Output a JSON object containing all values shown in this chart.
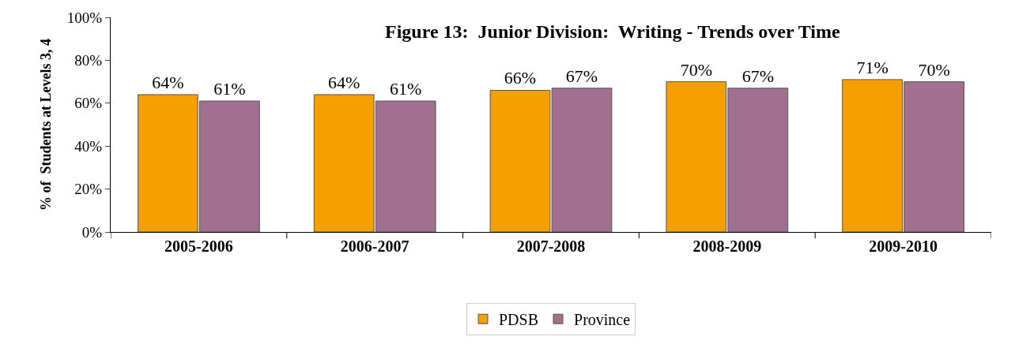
{
  "chart_data": {
    "type": "bar",
    "title": "Figure 13:  Junior Division:  Writing - Trends over Time",
    "ylabel": "% of  Students at Levels 3, 4",
    "categories": [
      "2005-2006",
      "2006-2007",
      "2007-2008",
      "2008-2009",
      "2009-2010"
    ],
    "series": [
      {
        "name": "PDSB",
        "color": "#f5a000",
        "values": [
          64,
          64,
          66,
          70,
          71
        ],
        "value_labels": [
          "64%",
          "64%",
          "66%",
          "70%",
          "71%"
        ]
      },
      {
        "name": "Province",
        "color": "#a2708f",
        "values": [
          61,
          61,
          67,
          67,
          70
        ],
        "value_labels": [
          "61%",
          "61%",
          "67%",
          "67%",
          "70%"
        ]
      }
    ],
    "ylim": [
      0,
      100
    ],
    "yticks": [
      {
        "value": 0,
        "label": "0%"
      },
      {
        "value": 20,
        "label": "20%"
      },
      {
        "value": 40,
        "label": "40%"
      },
      {
        "value": 60,
        "label": "60%"
      },
      {
        "value": 80,
        "label": "80%"
      },
      {
        "value": 100,
        "label": "100%"
      }
    ],
    "grid": false,
    "legend": "bottom"
  }
}
